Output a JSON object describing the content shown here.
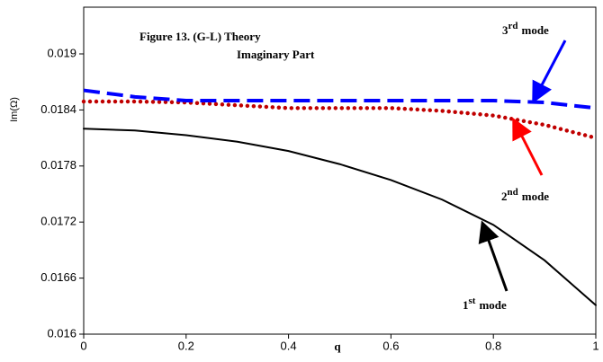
{
  "chart_data": {
    "type": "line",
    "title": "Figure 13.   (G-L) Theory",
    "subtitle": "Imaginary Part",
    "x_label": "q",
    "y_label": "Im(Ω)",
    "x": [
      0,
      0.1,
      0.2,
      0.3,
      0.4,
      0.5,
      0.6,
      0.7,
      0.8,
      0.9,
      1
    ],
    "xlim": [
      0,
      1
    ],
    "xticks": [
      0,
      0.2,
      0.4,
      0.6,
      0.8,
      1
    ],
    "ylim": [
      0.016,
      0.0195
    ],
    "yticks": [
      0.016,
      0.0166,
      0.0172,
      0.0178,
      0.0184,
      0.019
    ],
    "series": [
      {
        "name": "1st mode",
        "color": "#000000",
        "style": "solid",
        "values": [
          0.0182,
          0.01818,
          0.01813,
          0.01806,
          0.01796,
          0.01782,
          0.01765,
          0.01744,
          0.01717,
          0.01679,
          0.01631
        ]
      },
      {
        "name": "2nd mode",
        "color": "#c00000",
        "style": "dotted",
        "values": [
          0.01849,
          0.01849,
          0.01848,
          0.01845,
          0.01842,
          0.01842,
          0.01842,
          0.01839,
          0.01834,
          0.01824,
          0.0181
        ]
      },
      {
        "name": "3rd mode",
        "color": "#0000ff",
        "style": "dashed",
        "values": [
          0.01861,
          0.01854,
          0.0185,
          0.0185,
          0.0185,
          0.0185,
          0.0185,
          0.0185,
          0.0185,
          0.01848,
          0.01842
        ]
      }
    ],
    "annotations": [
      {
        "number": "3",
        "suffix": "rd",
        "word": "mode"
      },
      {
        "number": "2",
        "suffix": "nd",
        "word": "mode"
      },
      {
        "number": "1",
        "suffix": "st",
        "word": "mode"
      }
    ]
  }
}
